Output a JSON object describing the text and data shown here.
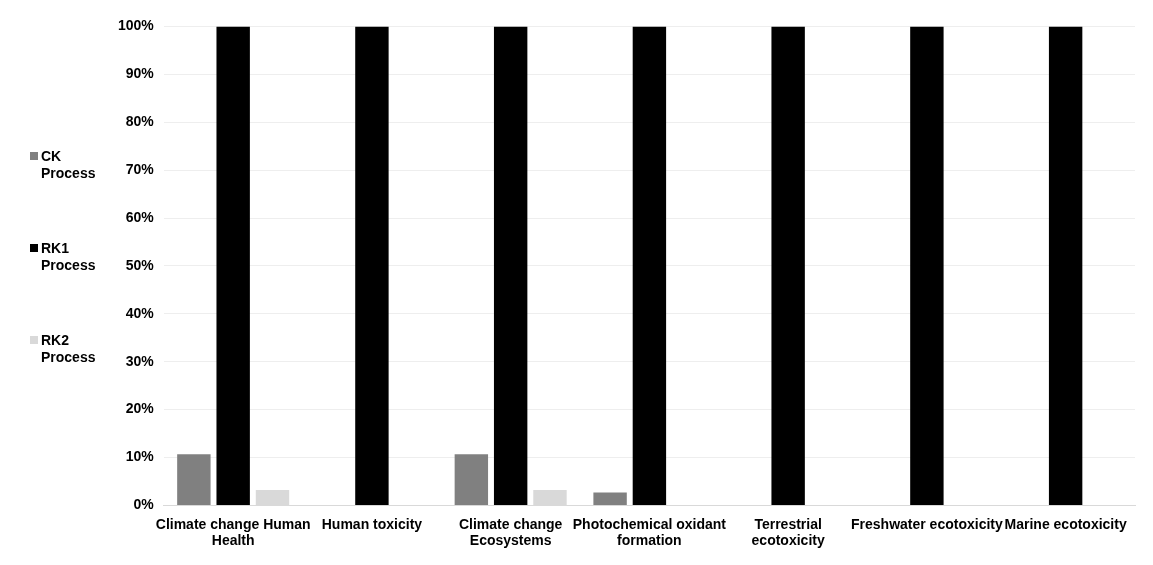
{
  "chart_data": {
    "type": "bar",
    "categories": [
      "Climate change Human Health",
      "Human toxicity",
      "Climate change Ecosystems",
      "Photochemical oxidant formation",
      "Terrestrial ecotoxicity",
      "Freshwater ecotoxicity",
      "Marine ecotoxicity"
    ],
    "series": [
      {
        "name": "CK Process",
        "color": "#808080",
        "values": [
          10.7,
          0,
          10.7,
          2.7,
          0,
          0,
          0
        ]
      },
      {
        "name": "RK1 Process",
        "color": "#000000",
        "values": [
          100,
          100,
          100,
          100,
          100,
          100,
          100
        ]
      },
      {
        "name": "RK2 Process",
        "color": "#d9d9d9",
        "values": [
          3.2,
          0,
          3.2,
          0,
          0,
          0,
          0
        ]
      }
    ],
    "ylim": [
      0,
      100
    ],
    "yticks": [
      {
        "value": 0,
        "label": "0%"
      },
      {
        "value": 10,
        "label": "10%"
      },
      {
        "value": 20,
        "label": "20%"
      },
      {
        "value": 30,
        "label": "30%"
      },
      {
        "value": 40,
        "label": "40%"
      },
      {
        "value": 50,
        "label": "50%"
      },
      {
        "value": 60,
        "label": "60%"
      },
      {
        "value": 70,
        "label": "70%"
      },
      {
        "value": 80,
        "label": "80%"
      },
      {
        "value": 90,
        "label": "90%"
      },
      {
        "value": 100,
        "label": "100%"
      }
    ],
    "grid": "y",
    "legend": "left"
  }
}
